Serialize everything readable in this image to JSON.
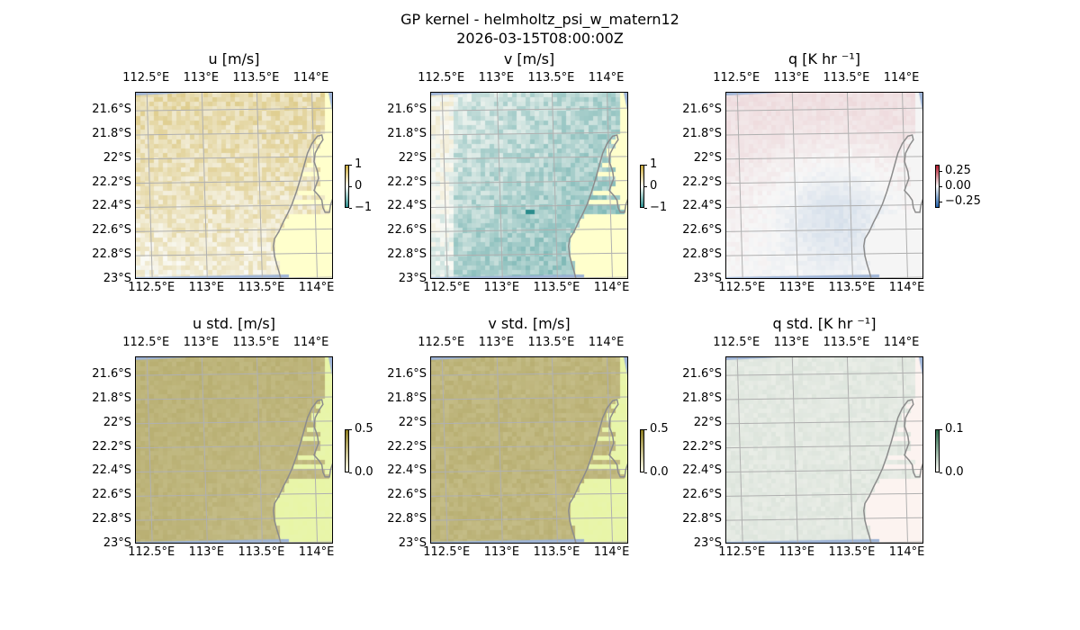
{
  "figure": {
    "title_line1": "GP kernel - helmholtz_psi_w_matern12",
    "title_line2": "2026-03-15T08:00:00Z"
  },
  "map_ticks": {
    "lon": [
      "112.5°E",
      "113°E",
      "113.5°E",
      "114°E"
    ],
    "lon_values": [
      112.5,
      113.0,
      113.5,
      114.0
    ],
    "lat": [
      "21.6°S",
      "21.8°S",
      "22°S",
      "22.2°S",
      "22.4°S",
      "22.6°S",
      "22.8°S",
      "23°S"
    ],
    "lat_values": [
      -21.6,
      -21.8,
      -22.0,
      -22.2,
      -22.4,
      -22.6,
      -22.8,
      -23.0
    ]
  },
  "extent": {
    "lon_min": 112.4,
    "lon_max": 114.2,
    "lat_min": -23.0,
    "lat_max": -21.45
  },
  "colors": {
    "land": "#ffffc8",
    "ocean_edge": "#9db3d6",
    "coastline": "#8c8c8c",
    "grid": "#b0b0b0",
    "u_positive": "#d4c26a",
    "v_negative": "#5aa7a7",
    "q_positive": "#f4b99c",
    "q_negative": "#bcd7ee",
    "std_fill": "#cdbd5a",
    "std_land": "#eaf5a8",
    "qstd_fill": "#ece9df"
  },
  "panels": [
    {
      "id": "u",
      "title": "u [m/s]",
      "cbar_ticks": [
        "1",
        "0",
        "−1"
      ],
      "cbar_values": [
        1,
        0,
        -1
      ],
      "cmap": "diverging_teal_gold",
      "vmin": -1,
      "vmax": 1
    },
    {
      "id": "v",
      "title": "v [m/s]",
      "cbar_ticks": [
        "1",
        "0",
        "−1"
      ],
      "cbar_values": [
        1,
        0,
        -1
      ],
      "cmap": "diverging_teal_gold",
      "vmin": -1,
      "vmax": 1
    },
    {
      "id": "q",
      "title": "q [K hr ⁻¹]",
      "cbar_ticks": [
        "0.25",
        "0.00",
        "−0.25"
      ],
      "cbar_values": [
        0.25,
        0.0,
        -0.25
      ],
      "cmap": "diverging_red_blue",
      "vmin": -0.35,
      "vmax": 0.35
    },
    {
      "id": "ustd",
      "title": "u std. [m/s]",
      "cbar_ticks": [
        "0.5",
        "0.0"
      ],
      "cbar_values": [
        0.5,
        0.0
      ],
      "cmap": "sequential_gold",
      "vmin": 0,
      "vmax": 0.5
    },
    {
      "id": "vstd",
      "title": "v std. [m/s]",
      "cbar_ticks": [
        "0.5",
        "0.0"
      ],
      "cbar_values": [
        0.5,
        0.0
      ],
      "cmap": "sequential_gold",
      "vmin": 0,
      "vmax": 0.5
    },
    {
      "id": "qstd",
      "title": "q std. [K hr ⁻¹]",
      "cbar_ticks": [
        "0.1",
        "0.0"
      ],
      "cbar_values": [
        0.1,
        0.0
      ],
      "cmap": "sequential_pale",
      "vmin": 0,
      "vmax": 0.1
    }
  ]
}
